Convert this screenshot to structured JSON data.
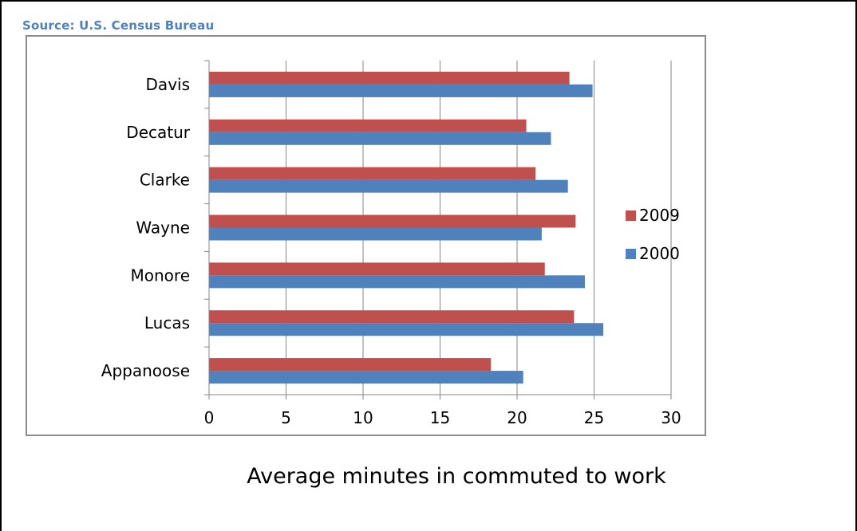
{
  "source": "Source: U.S. Census Bureau",
  "caption": "Average minutes in commuted to work",
  "chart_data": {
    "type": "bar",
    "orientation": "horizontal",
    "categories": [
      "Davis",
      "Decatur",
      "Clarke",
      "Wayne",
      "Monore",
      "Lucas",
      "Appanoose"
    ],
    "series": [
      {
        "name": "2009",
        "color": "#c0504d",
        "values": [
          23.4,
          20.6,
          21.2,
          23.8,
          21.8,
          23.7,
          18.3
        ]
      },
      {
        "name": "2000",
        "color": "#4f81bd",
        "values": [
          24.9,
          22.2,
          23.3,
          21.6,
          24.4,
          25.6,
          20.4
        ]
      }
    ],
    "xlim": [
      0,
      30
    ],
    "xticks": [
      "0",
      "5",
      "10",
      "15",
      "20",
      "25",
      "30"
    ],
    "grid": true,
    "legend_position": "right"
  }
}
